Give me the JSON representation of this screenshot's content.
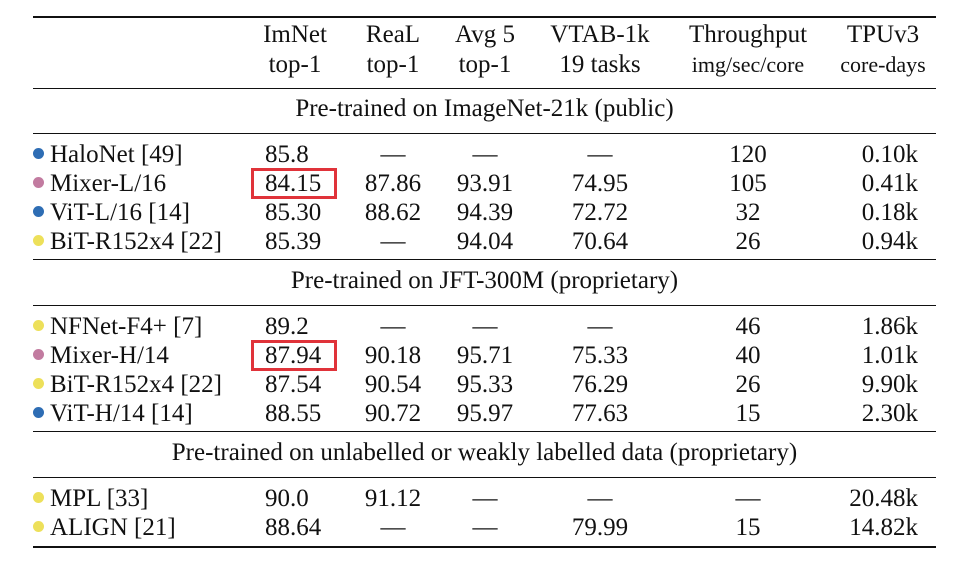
{
  "headers": [
    {
      "line1": "ImNet",
      "line2": "top-1"
    },
    {
      "line1": "ReaL",
      "line2": "top-1"
    },
    {
      "line1": "Avg 5",
      "line2": "top-1"
    },
    {
      "line1": "VTAB-1k",
      "line2": "19 tasks"
    },
    {
      "line1": "Throughput",
      "line2": "img/sec/core"
    },
    {
      "line1": "TPUv3",
      "line2": "core-days"
    }
  ],
  "colors": {
    "blue": "#2e6db4",
    "pink": "#c27ba0",
    "yellow": "#ede05a",
    "highlight": "#e0333a"
  },
  "sections": [
    {
      "title": "Pre-trained on ImageNet-21k (public)",
      "rows": [
        {
          "name": "HaloNet [49]",
          "dot": "blue",
          "vals": [
            "85.8",
            "—",
            "—",
            "—",
            "120",
            "0.10k"
          ],
          "highlight": false
        },
        {
          "name": "Mixer-L/16",
          "dot": "pink",
          "vals": [
            "84.15",
            "87.86",
            "93.91",
            "74.95",
            "105",
            "0.41k"
          ],
          "highlight": true
        },
        {
          "name": "ViT-L/16 [14]",
          "dot": "blue",
          "vals": [
            "85.30",
            "88.62",
            "94.39",
            "72.72",
            "32",
            "0.18k"
          ],
          "highlight": false
        },
        {
          "name": "BiT-R152x4 [22]",
          "dot": "yellow",
          "vals": [
            "85.39",
            "—",
            "94.04",
            "70.64",
            "26",
            "0.94k"
          ],
          "highlight": false
        }
      ]
    },
    {
      "title": "Pre-trained on JFT-300M (proprietary)",
      "rows": [
        {
          "name": "NFNet-F4+ [7]",
          "dot": "yellow",
          "vals": [
            "89.2",
            "—",
            "—",
            "—",
            "46",
            "1.86k"
          ],
          "highlight": false
        },
        {
          "name": "Mixer-H/14",
          "dot": "pink",
          "vals": [
            "87.94",
            "90.18",
            "95.71",
            "75.33",
            "40",
            "1.01k"
          ],
          "highlight": true
        },
        {
          "name": "BiT-R152x4 [22]",
          "dot": "yellow",
          "vals": [
            "87.54",
            "90.54",
            "95.33",
            "76.29",
            "26",
            "9.90k"
          ],
          "highlight": false
        },
        {
          "name": "ViT-H/14 [14]",
          "dot": "blue",
          "vals": [
            "88.55",
            "90.72",
            "95.97",
            "77.63",
            "15",
            "2.30k"
          ],
          "highlight": false
        }
      ]
    },
    {
      "title": "Pre-trained on unlabelled or weakly labelled data (proprietary)",
      "rows": [
        {
          "name": "MPL [33]",
          "dot": "yellow",
          "vals": [
            "90.0",
            "91.12",
            "—",
            "—",
            "—",
            "20.48k"
          ],
          "highlight": false
        },
        {
          "name": "ALIGN [21]",
          "dot": "yellow",
          "vals": [
            "88.64",
            "—",
            "—",
            "79.99",
            "15",
            "14.82k"
          ],
          "highlight": false
        }
      ]
    }
  ]
}
